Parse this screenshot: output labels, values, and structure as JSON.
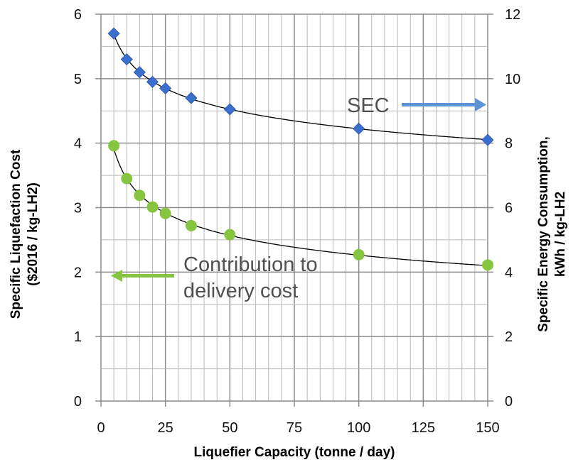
{
  "chart_data": {
    "type": "scatter",
    "xlabel": "Liquefier Capacity (tonne / day)",
    "ylabel_left": [
      "Specific Liquefaction Cost",
      "($2016 / kg-LH2)"
    ],
    "ylabel_right": [
      "Specific Energy Consumption,",
      "kWh / kg-LH2"
    ],
    "xlim": [
      0,
      150
    ],
    "ylim_left": [
      0,
      6
    ],
    "ylim_right": [
      0,
      12
    ],
    "x_ticks": [
      "0",
      "25",
      "50",
      "75",
      "100",
      "125",
      "150"
    ],
    "y_ticks_left": [
      "0",
      "1",
      "2",
      "3",
      "4",
      "5",
      "6"
    ],
    "y_ticks_right": [
      "0",
      "2",
      "4",
      "6",
      "8",
      "10",
      "12"
    ],
    "grid": true,
    "series": [
      {
        "axis": "right",
        "marker": "diamond",
        "color": "#3a6fd0",
        "trendline": "power",
        "x": [
          5,
          10,
          15,
          20,
          25,
          35,
          50,
          100,
          150
        ],
        "y": [
          11.4,
          10.6,
          10.2,
          9.9,
          9.7,
          9.4,
          9.05,
          8.45,
          8.1
        ]
      },
      {
        "axis": "left",
        "marker": "circle",
        "color": "#86c540",
        "trendline": "power",
        "x": [
          5,
          10,
          15,
          20,
          25,
          35,
          50,
          100,
          150
        ],
        "y": [
          3.96,
          3.45,
          3.19,
          3.01,
          2.91,
          2.72,
          2.58,
          2.27,
          2.11
        ]
      }
    ],
    "annotations": [
      {
        "text": "SEC",
        "arrow": "right",
        "arrow_color": "#5b93d6"
      },
      {
        "text": [
          "Contribution to",
          "delivery cost"
        ],
        "arrow": "left",
        "arrow_color": "#86c540"
      }
    ]
  }
}
